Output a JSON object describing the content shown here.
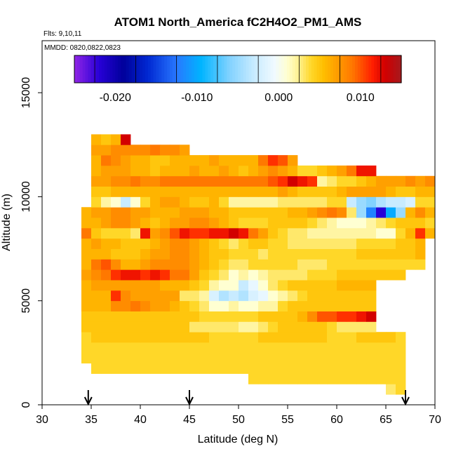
{
  "chart_data": {
    "type": "heatmap",
    "title": "ATOM1 North_America fC2H4O2_PM1_AMS",
    "flights_label": "Flts: 9,10,11",
    "dates_label": "MMDD: 0820,0822,0823",
    "xlabel": "Latitude (deg N)",
    "ylabel": "Altitude (m)",
    "xlim": [
      30,
      70
    ],
    "ylim": [
      0,
      17500
    ],
    "x_ticks": [
      30,
      35,
      40,
      45,
      50,
      55,
      60,
      65,
      70
    ],
    "y_ticks": [
      0,
      5000,
      10000,
      15000
    ],
    "colorbar": {
      "min": -0.025,
      "max": 0.015,
      "tick_values": [
        -0.02,
        -0.01,
        0.0,
        0.01
      ],
      "tick_labels": [
        "-0.020",
        "-0.010",
        "0.000",
        "0.010"
      ]
    },
    "flight_markers_latitude": [
      34.7,
      45,
      67
    ],
    "cell_size": {
      "dlat": 1.0,
      "dalt": 500
    },
    "rows": [
      {
        "alt_min": 500,
        "lat_start": 65,
        "values": [
          0.003,
          0.004
        ]
      },
      {
        "alt_min": 1000,
        "lat_start": 51,
        "values": [
          0.004,
          0.004,
          0.004,
          0.004,
          0.004,
          0.004,
          0.004,
          0.004,
          0.004,
          0.004,
          0.004,
          0.004,
          0.004,
          0.004,
          0.004,
          0.004
        ]
      },
      {
        "alt_min": 1500,
        "lat_start": 35,
        "values": [
          0.004,
          0.004,
          0.004,
          0.004,
          0.004,
          0.004,
          0.004,
          0.004,
          0.004,
          0.004,
          0.004,
          0.004,
          0.004,
          0.004,
          0.004,
          0.004,
          0.004,
          0.004,
          0.004,
          0.004,
          0.004,
          0.004,
          0.004,
          0.004,
          0.004,
          0.004,
          0.004,
          0.004,
          0.004,
          0.004,
          0.004,
          0.004
        ]
      },
      {
        "alt_min": 2000,
        "lat_start": 34,
        "values": [
          0.004,
          0.004,
          0.004,
          0.004,
          0.004,
          0.004,
          0.004,
          0.004,
          0.004,
          0.004,
          0.004,
          0.004,
          0.004,
          0.004,
          0.004,
          0.004,
          0.004,
          0.004,
          0.004,
          0.004,
          0.004,
          0.004,
          0.004,
          0.004,
          0.004,
          0.004,
          0.004,
          0.004,
          0.004,
          0.004,
          0.004,
          0.004,
          0.004
        ]
      },
      {
        "alt_min": 2500,
        "lat_start": 34,
        "values": [
          0.004,
          0.004,
          0.004,
          0.004,
          0.004,
          0.004,
          0.004,
          0.004,
          0.004,
          0.004,
          0.004,
          0.004,
          0.004,
          0.004,
          0.004,
          0.004,
          0.004,
          0.004,
          0.004,
          0.004,
          0.004,
          0.004,
          0.004,
          0.004,
          0.004,
          0.004,
          0.004,
          0.004,
          0.004,
          0.004,
          0.004,
          0.004,
          0.004
        ]
      },
      {
        "alt_min": 3000,
        "lat_start": 34,
        "values": [
          0.004,
          0.005,
          0.005,
          0.005,
          0.005,
          0.005,
          0.005,
          0.005,
          0.005,
          0.005,
          0.005,
          0.005,
          0.005,
          0.004,
          0.004,
          0.004,
          0.004,
          0.004,
          0.005,
          0.005,
          0.005,
          0.005,
          0.005,
          0.005,
          0.005,
          0.004,
          0.004,
          0.004,
          0.005,
          0.005,
          0.005,
          0.005,
          0.004
        ]
      },
      {
        "alt_min": 3500,
        "lat_start": 34,
        "values": [
          0.005,
          0.005,
          0.005,
          0.005,
          0.005,
          0.005,
          0.005,
          0.005,
          0.005,
          0.005,
          0.005,
          0.003,
          0.003,
          0.003,
          0.003,
          0.003,
          0.002,
          0.002,
          0.003,
          0.004,
          0.005,
          0.005,
          0.005,
          0.005,
          0.005,
          0.004,
          0.003,
          0.003,
          0.003,
          0.003
        ]
      },
      {
        "alt_min": 4000,
        "lat_start": 34,
        "values": [
          0.005,
          0.005,
          0.005,
          0.005,
          0.005,
          0.005,
          0.005,
          0.005,
          0.005,
          0.005,
          0.005,
          0.005,
          0.004,
          0.004,
          0.004,
          0.004,
          0.004,
          0.004,
          0.005,
          0.005,
          0.005,
          0.005,
          0.006,
          0.008,
          0.01,
          0.01,
          0.011,
          0.011,
          0.012,
          0.013
        ]
      },
      {
        "alt_min": 4500,
        "lat_start": 34,
        "values": [
          0.006,
          0.006,
          0.006,
          0.008,
          0.008,
          0.009,
          0.008,
          0.007,
          0.007,
          0.006,
          0.005,
          0.004,
          0.003,
          0.001,
          0.001,
          0.002,
          0.001,
          0.001,
          0.002,
          0.002,
          0.004,
          0.005,
          0.005,
          0.005,
          0.005,
          0.005,
          0.005,
          0.005,
          0.005,
          0.005
        ]
      },
      {
        "alt_min": 5000,
        "lat_start": 34,
        "values": [
          0.006,
          0.006,
          0.006,
          0.011,
          0.008,
          0.007,
          0.007,
          0.007,
          0.007,
          0.007,
          0.003,
          0.003,
          0.002,
          -0.002,
          -0.004,
          -0.003,
          -0.004,
          -0.002,
          -0.001,
          0.001,
          0.002,
          0.003,
          0.004,
          0.005,
          0.005,
          0.005,
          0.005,
          0.005,
          0.005,
          0.005
        ]
      },
      {
        "alt_min": 5500,
        "lat_start": 34,
        "values": [
          0.006,
          0.007,
          0.007,
          0.007,
          0.007,
          0.007,
          0.007,
          0.007,
          0.006,
          0.006,
          0.006,
          0.005,
          0.004,
          0.002,
          0.001,
          0.001,
          -0.003,
          -0.001,
          0.001,
          0.003,
          0.004,
          0.005,
          0.005,
          0.005,
          0.005,
          0.005,
          0.006,
          0.006,
          0.006,
          0.006
        ]
      },
      {
        "alt_min": 6000,
        "lat_start": 34,
        "values": [
          0.007,
          0.008,
          0.009,
          0.011,
          0.012,
          0.012,
          0.011,
          0.012,
          0.011,
          0.009,
          0.009,
          0.007,
          0.005,
          0.004,
          0.003,
          0.001,
          0.002,
          0.001,
          0.002,
          0.003,
          0.003,
          0.003,
          0.003,
          0.004,
          0.004,
          0.004,
          0.005,
          0.005,
          0.005,
          0.005,
          0.005,
          0.005,
          0.005
        ]
      },
      {
        "alt_min": 6500,
        "lat_start": 34,
        "values": [
          0.006,
          0.009,
          0.01,
          0.008,
          0.006,
          0.006,
          0.007,
          0.008,
          0.008,
          0.008,
          0.008,
          0.007,
          0.006,
          0.005,
          0.004,
          0.003,
          0.003,
          0.004,
          0.004,
          0.004,
          0.004,
          0.004,
          0.003,
          0.003,
          0.003,
          0.004,
          0.004,
          0.004,
          0.004,
          0.004,
          0.004,
          0.004,
          0.004,
          0.004,
          0.004
        ]
      },
      {
        "alt_min": 7000,
        "lat_start": 34,
        "values": [
          0.006,
          0.006,
          0.006,
          0.005,
          0.005,
          0.005,
          0.006,
          0.007,
          0.007,
          0.008,
          0.008,
          0.007,
          0.006,
          0.005,
          0.005,
          0.004,
          0.004,
          0.004,
          0.003,
          0.004,
          0.004,
          0.004,
          0.004,
          0.004,
          0.004,
          0.004,
          0.004,
          0.004,
          0.005,
          0.005,
          0.005,
          0.005,
          0.005,
          0.005,
          0.006
        ]
      },
      {
        "alt_min": 7500,
        "lat_start": 34,
        "values": [
          0.006,
          0.007,
          0.006,
          0.006,
          0.005,
          0.005,
          0.005,
          0.006,
          0.007,
          0.008,
          0.008,
          0.007,
          0.006,
          0.005,
          0.004,
          0.003,
          0.004,
          0.005,
          0.005,
          0.004,
          0.004,
          0.003,
          0.003,
          0.003,
          0.003,
          0.003,
          0.003,
          0.003,
          0.004,
          0.004,
          0.004,
          0.004,
          0.005,
          0.005,
          0.006
        ]
      },
      {
        "alt_min": 8000,
        "lat_start": 34,
        "values": [
          0.009,
          0.005,
          0.004,
          0.004,
          0.004,
          0.003,
          0.012,
          0.007,
          0.008,
          0.01,
          0.012,
          0.011,
          0.011,
          0.012,
          0.012,
          0.013,
          0.012,
          0.009,
          0.007,
          0.005,
          0.004,
          0.003,
          0.003,
          0.002,
          0.002,
          0.002,
          0.002,
          0.002,
          0.002,
          0.002,
          0.001,
          0.001,
          0.004,
          0.006,
          0.011,
          0.006
        ]
      },
      {
        "alt_min": 8500,
        "lat_start": 34,
        "values": [
          0.006,
          0.006,
          0.007,
          0.008,
          0.008,
          0.007,
          0.006,
          0.005,
          0.006,
          0.007,
          0.007,
          0.008,
          0.008,
          0.007,
          0.006,
          0.005,
          0.004,
          0.004,
          0.004,
          0.005,
          0.005,
          0.005,
          0.005,
          0.004,
          0.003,
          0.002,
          0.001,
          0.001,
          0.001,
          0.002,
          0.003,
          0.004,
          0.005,
          0.005,
          0.005,
          0.004
        ]
      },
      {
        "alt_min": 9000,
        "lat_start": 34,
        "values": [
          0.006,
          0.007,
          0.007,
          0.008,
          0.008,
          0.007,
          0.007,
          0.006,
          0.006,
          0.006,
          0.007,
          0.007,
          0.007,
          0.006,
          0.006,
          0.005,
          0.005,
          0.005,
          0.005,
          0.005,
          0.005,
          0.006,
          0.006,
          0.007,
          0.008,
          0.009,
          0.008,
          0.003,
          -0.005,
          -0.012,
          -0.022,
          -0.01,
          -0.005,
          0.006,
          0.008,
          0.006
        ]
      },
      {
        "alt_min": 9500,
        "lat_start": 35,
        "values": [
          0.004,
          0.002,
          0.001,
          -0.003,
          0.001,
          0.004,
          0.006,
          0.007,
          0.007,
          0.006,
          0.005,
          0.005,
          0.006,
          0.004,
          0.002,
          0.002,
          0.002,
          0.002,
          0.002,
          0.003,
          0.003,
          0.003,
          0.003,
          0.003,
          0.004,
          0.004,
          -0.003,
          -0.005,
          -0.006,
          -0.004,
          -0.003,
          -0.003,
          -0.002,
          0.004,
          0.004
        ]
      },
      {
        "alt_min": 10000,
        "lat_start": 35,
        "values": [
          0.005,
          0.005,
          0.006,
          0.006,
          0.006,
          0.006,
          0.006,
          0.006,
          0.006,
          0.006,
          0.006,
          0.006,
          0.006,
          0.006,
          0.006,
          0.006,
          0.006,
          0.006,
          0.006,
          0.007,
          0.006,
          0.005,
          0.005,
          0.005,
          0.005,
          0.006,
          0.007,
          0.007,
          0.007,
          0.007,
          0.006,
          0.005,
          0.005,
          0.006,
          0.006
        ]
      },
      {
        "alt_min": 10500,
        "lat_start": 35,
        "values": [
          0.007,
          0.007,
          0.008,
          0.008,
          0.009,
          0.008,
          0.008,
          0.009,
          0.009,
          0.009,
          0.009,
          0.009,
          0.009,
          0.009,
          0.009,
          0.009,
          0.009,
          0.009,
          0.01,
          0.011,
          0.013,
          0.012,
          0.011,
          0.002,
          0.003,
          0.004,
          0.004,
          0.005,
          0.006,
          0.007,
          0.007,
          0.007,
          0.008,
          0.007,
          0.008
        ]
      },
      {
        "alt_min": 11000,
        "lat_start": 35,
        "values": [
          0.006,
          0.007,
          0.007,
          0.007,
          0.006,
          0.006,
          0.005,
          0.006,
          0.006,
          0.006,
          0.007,
          0.006,
          0.006,
          0.007,
          0.006,
          0.005,
          0.006,
          0.007,
          0.008,
          0.007,
          0.006,
          0.004,
          0.004,
          0.005,
          0.006,
          0.007,
          0.009,
          0.012,
          0.012
        ]
      },
      {
        "alt_min": 11500,
        "lat_start": 35,
        "values": [
          0.006,
          0.009,
          0.008,
          0.007,
          0.006,
          0.006,
          0.005,
          0.005,
          0.006,
          0.006,
          0.006,
          0.006,
          0.007,
          0.006,
          0.006,
          0.006,
          0.006,
          0.009,
          0.011,
          0.01,
          0.007
        ]
      },
      {
        "alt_min": 12000,
        "lat_start": 35,
        "values": [
          0.007,
          0.007,
          0.008,
          0.008,
          0.008,
          0.008,
          0.009,
          0.008,
          0.008,
          0.007
        ]
      },
      {
        "alt_min": 12500,
        "lat_start": 35,
        "values": [
          0.006,
          0.005,
          0.006,
          0.013
        ]
      }
    ]
  }
}
